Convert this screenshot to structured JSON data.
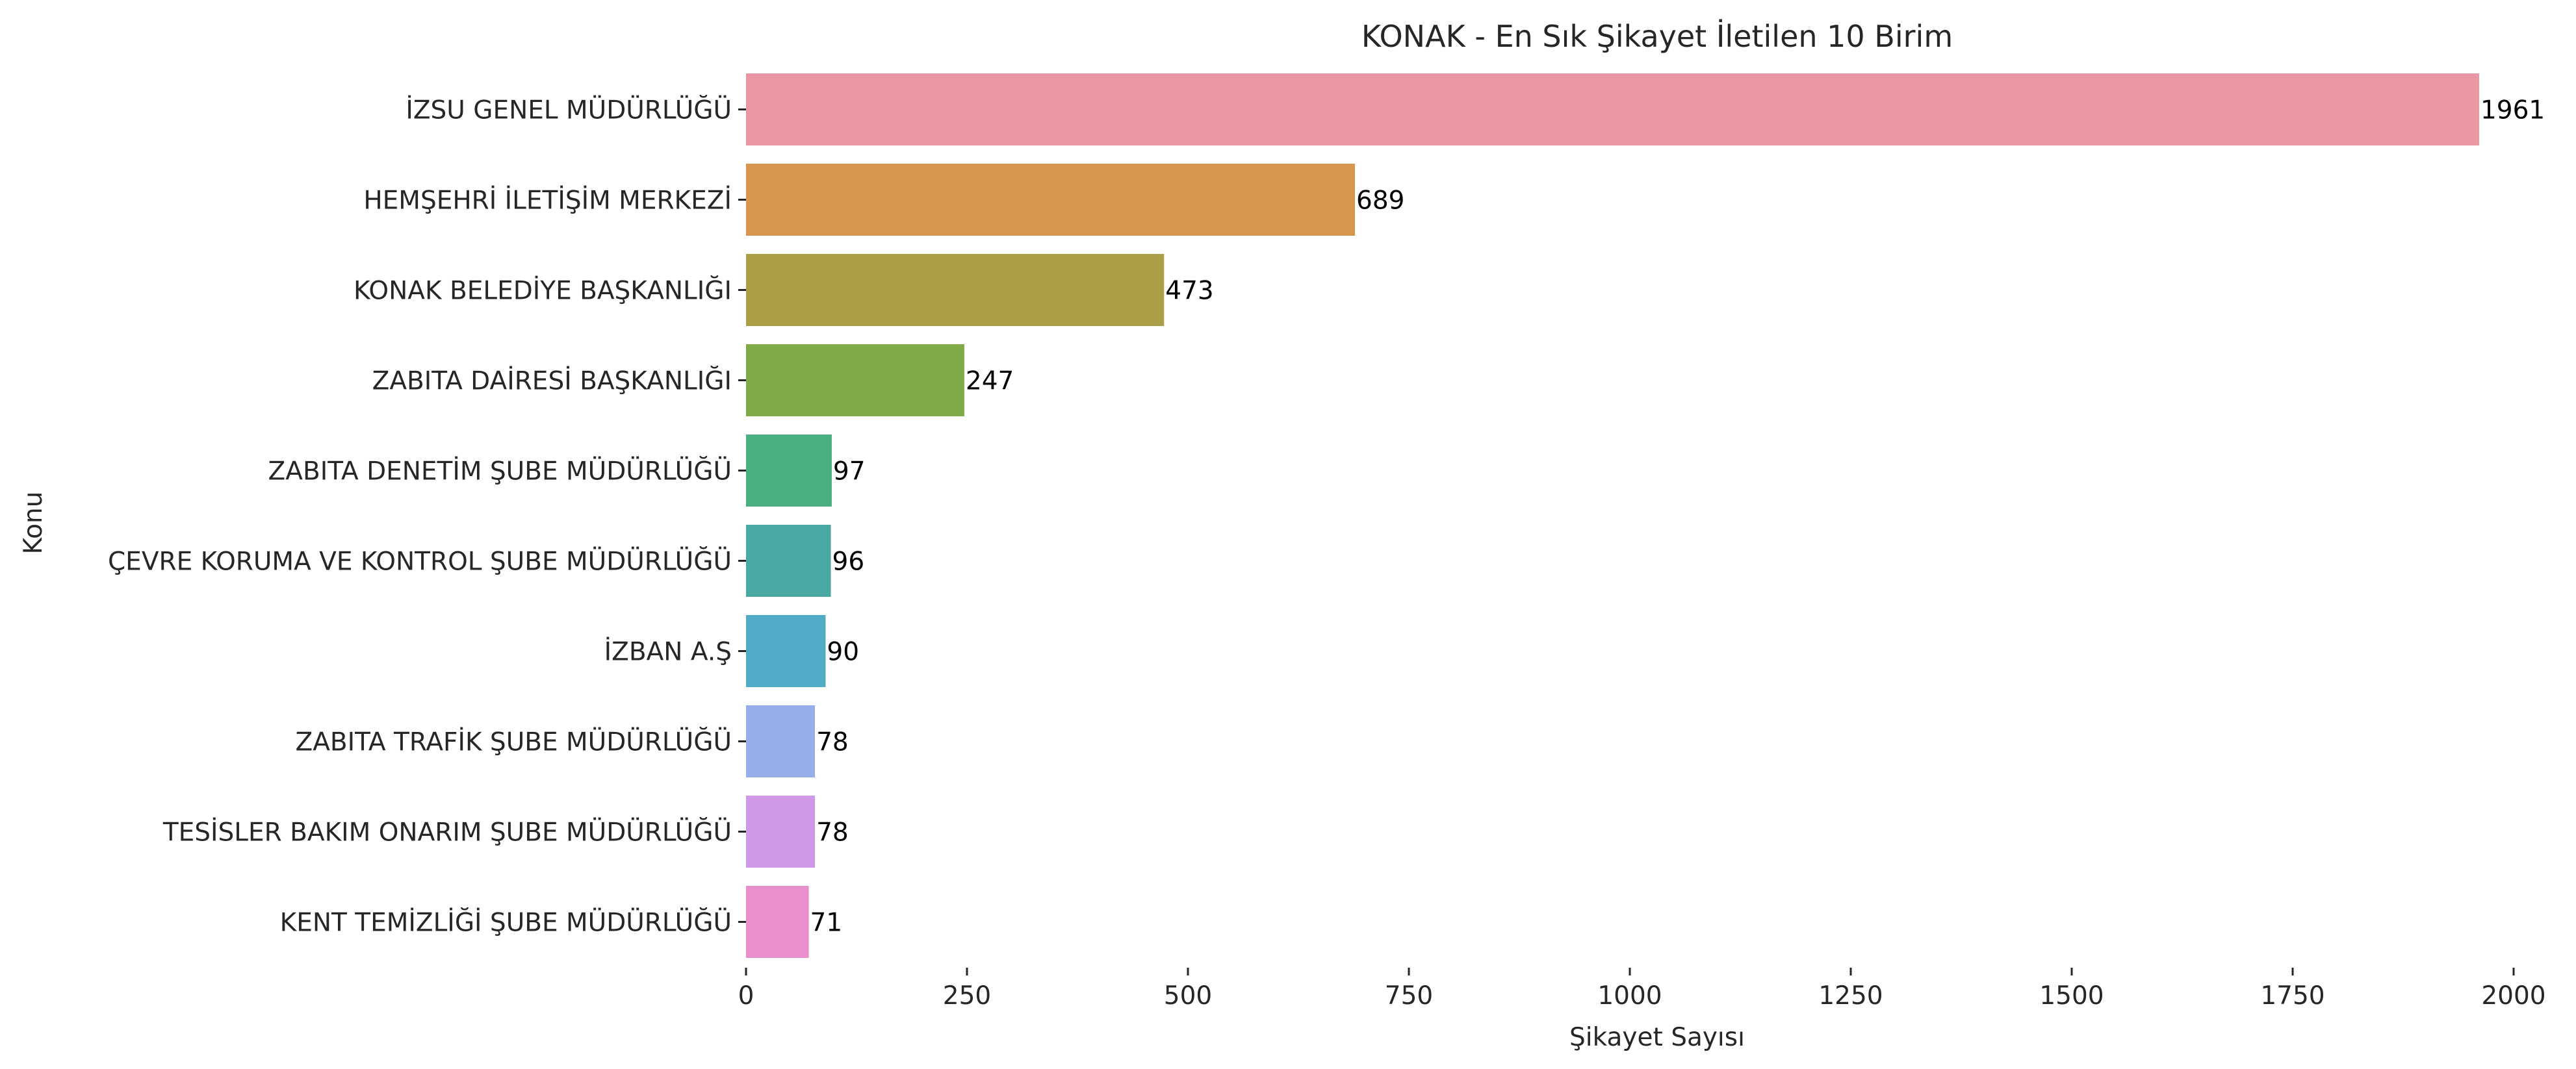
{
  "chart_data": {
    "type": "bar",
    "orientation": "horizontal",
    "title": "KONAK - En Sık Şikayet İletilen 10 Birim",
    "xlabel": "Şikayet Sayısı",
    "ylabel": "Konu",
    "xlim": [
      0,
      2000
    ],
    "xticks": [
      0,
      250,
      500,
      750,
      1000,
      1250,
      1500,
      1750,
      2000
    ],
    "grid": false,
    "legend": "none",
    "categories": [
      "İZSU GENEL MÜDÜRLÜĞÜ",
      "HEMŞEHRİ İLETİŞİM MERKEZİ",
      "KONAK BELEDİYE BAŞKANLIĞI",
      "ZABITA DAİRESİ BAŞKANLIĞI",
      "ZABITA DENETİM ŞUBE MÜDÜRLÜĞÜ",
      "ÇEVRE KORUMA VE KONTROL ŞUBE MÜDÜRLÜĞÜ",
      "İZBAN A.Ş",
      "ZABITA TRAFİK ŞUBE MÜDÜRLÜĞÜ",
      "TESİSLER BAKIM ONARIM ŞUBE MÜDÜRLÜĞÜ",
      "KENT TEMİZLİĞİ ŞUBE MÜDÜRLÜĞÜ"
    ],
    "values": [
      1961,
      689,
      473,
      247,
      97,
      96,
      90,
      78,
      78,
      71
    ],
    "colors": [
      "#ea96a3",
      "#d89550",
      "#aa9e46",
      "#80aa46",
      "#4aaf7e",
      "#4aaaa3",
      "#52abc6",
      "#96aee9",
      "#cf99e8",
      "#e88fcc"
    ]
  }
}
